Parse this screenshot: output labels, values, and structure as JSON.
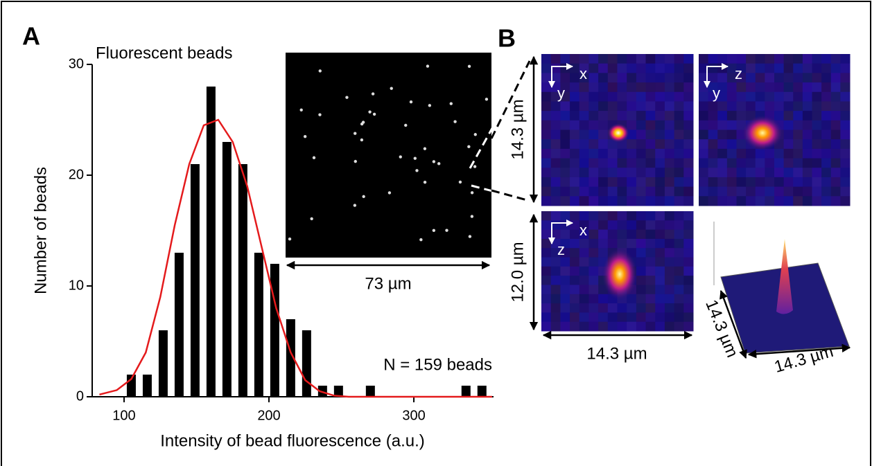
{
  "chart_data": {
    "type": "bar",
    "xlabel": "Intensity of bead fluorescence (a.u.)",
    "ylabel": "Number of beads",
    "x": [
      105,
      116,
      127,
      138,
      149,
      160,
      171,
      182,
      193,
      204,
      215,
      226,
      237,
      248,
      259,
      270,
      281,
      292,
      303,
      314,
      325,
      336,
      347
    ],
    "values": [
      2,
      2,
      6,
      13,
      21,
      28,
      23,
      21,
      13,
      12,
      7,
      6,
      1,
      1,
      0,
      1,
      0,
      0,
      0,
      0,
      0,
      1,
      1
    ],
    "color": "#000000",
    "fit": {
      "color": "#e41a1c",
      "x": [
        83,
        95,
        105,
        115,
        125,
        135,
        145,
        155,
        165,
        175,
        185,
        195,
        205,
        215,
        225,
        235,
        245,
        255,
        320,
        354
      ],
      "values": [
        0.2,
        0.6,
        1.6,
        4,
        9,
        15.5,
        21,
        24.5,
        25,
        23,
        19,
        13.5,
        8,
        4,
        1.5,
        0.5,
        0.1,
        0,
        0,
        0
      ]
    },
    "xlim": [
      78,
      355
    ],
    "ylim": [
      0,
      30
    ],
    "xticks": [
      100,
      200,
      300
    ],
    "yticks": [
      0,
      10,
      20,
      30
    ],
    "annotations": {
      "inset": "Fluorescent beads",
      "count": "N = 159 beads",
      "scale": "73 µm"
    }
  },
  "figure": {
    "panel_a": "A",
    "panel_b": "B",
    "xy_height": "14.3 µm",
    "xz_height": "12.0 µm",
    "xz_width": "14.3 µm",
    "surface_depth": "14.3 µm",
    "surface_width": "14.3 µm",
    "axes_xy": [
      "x",
      "y"
    ],
    "axes_yz": [
      "z",
      "y"
    ],
    "axes_xz": [
      "x",
      "z"
    ]
  }
}
